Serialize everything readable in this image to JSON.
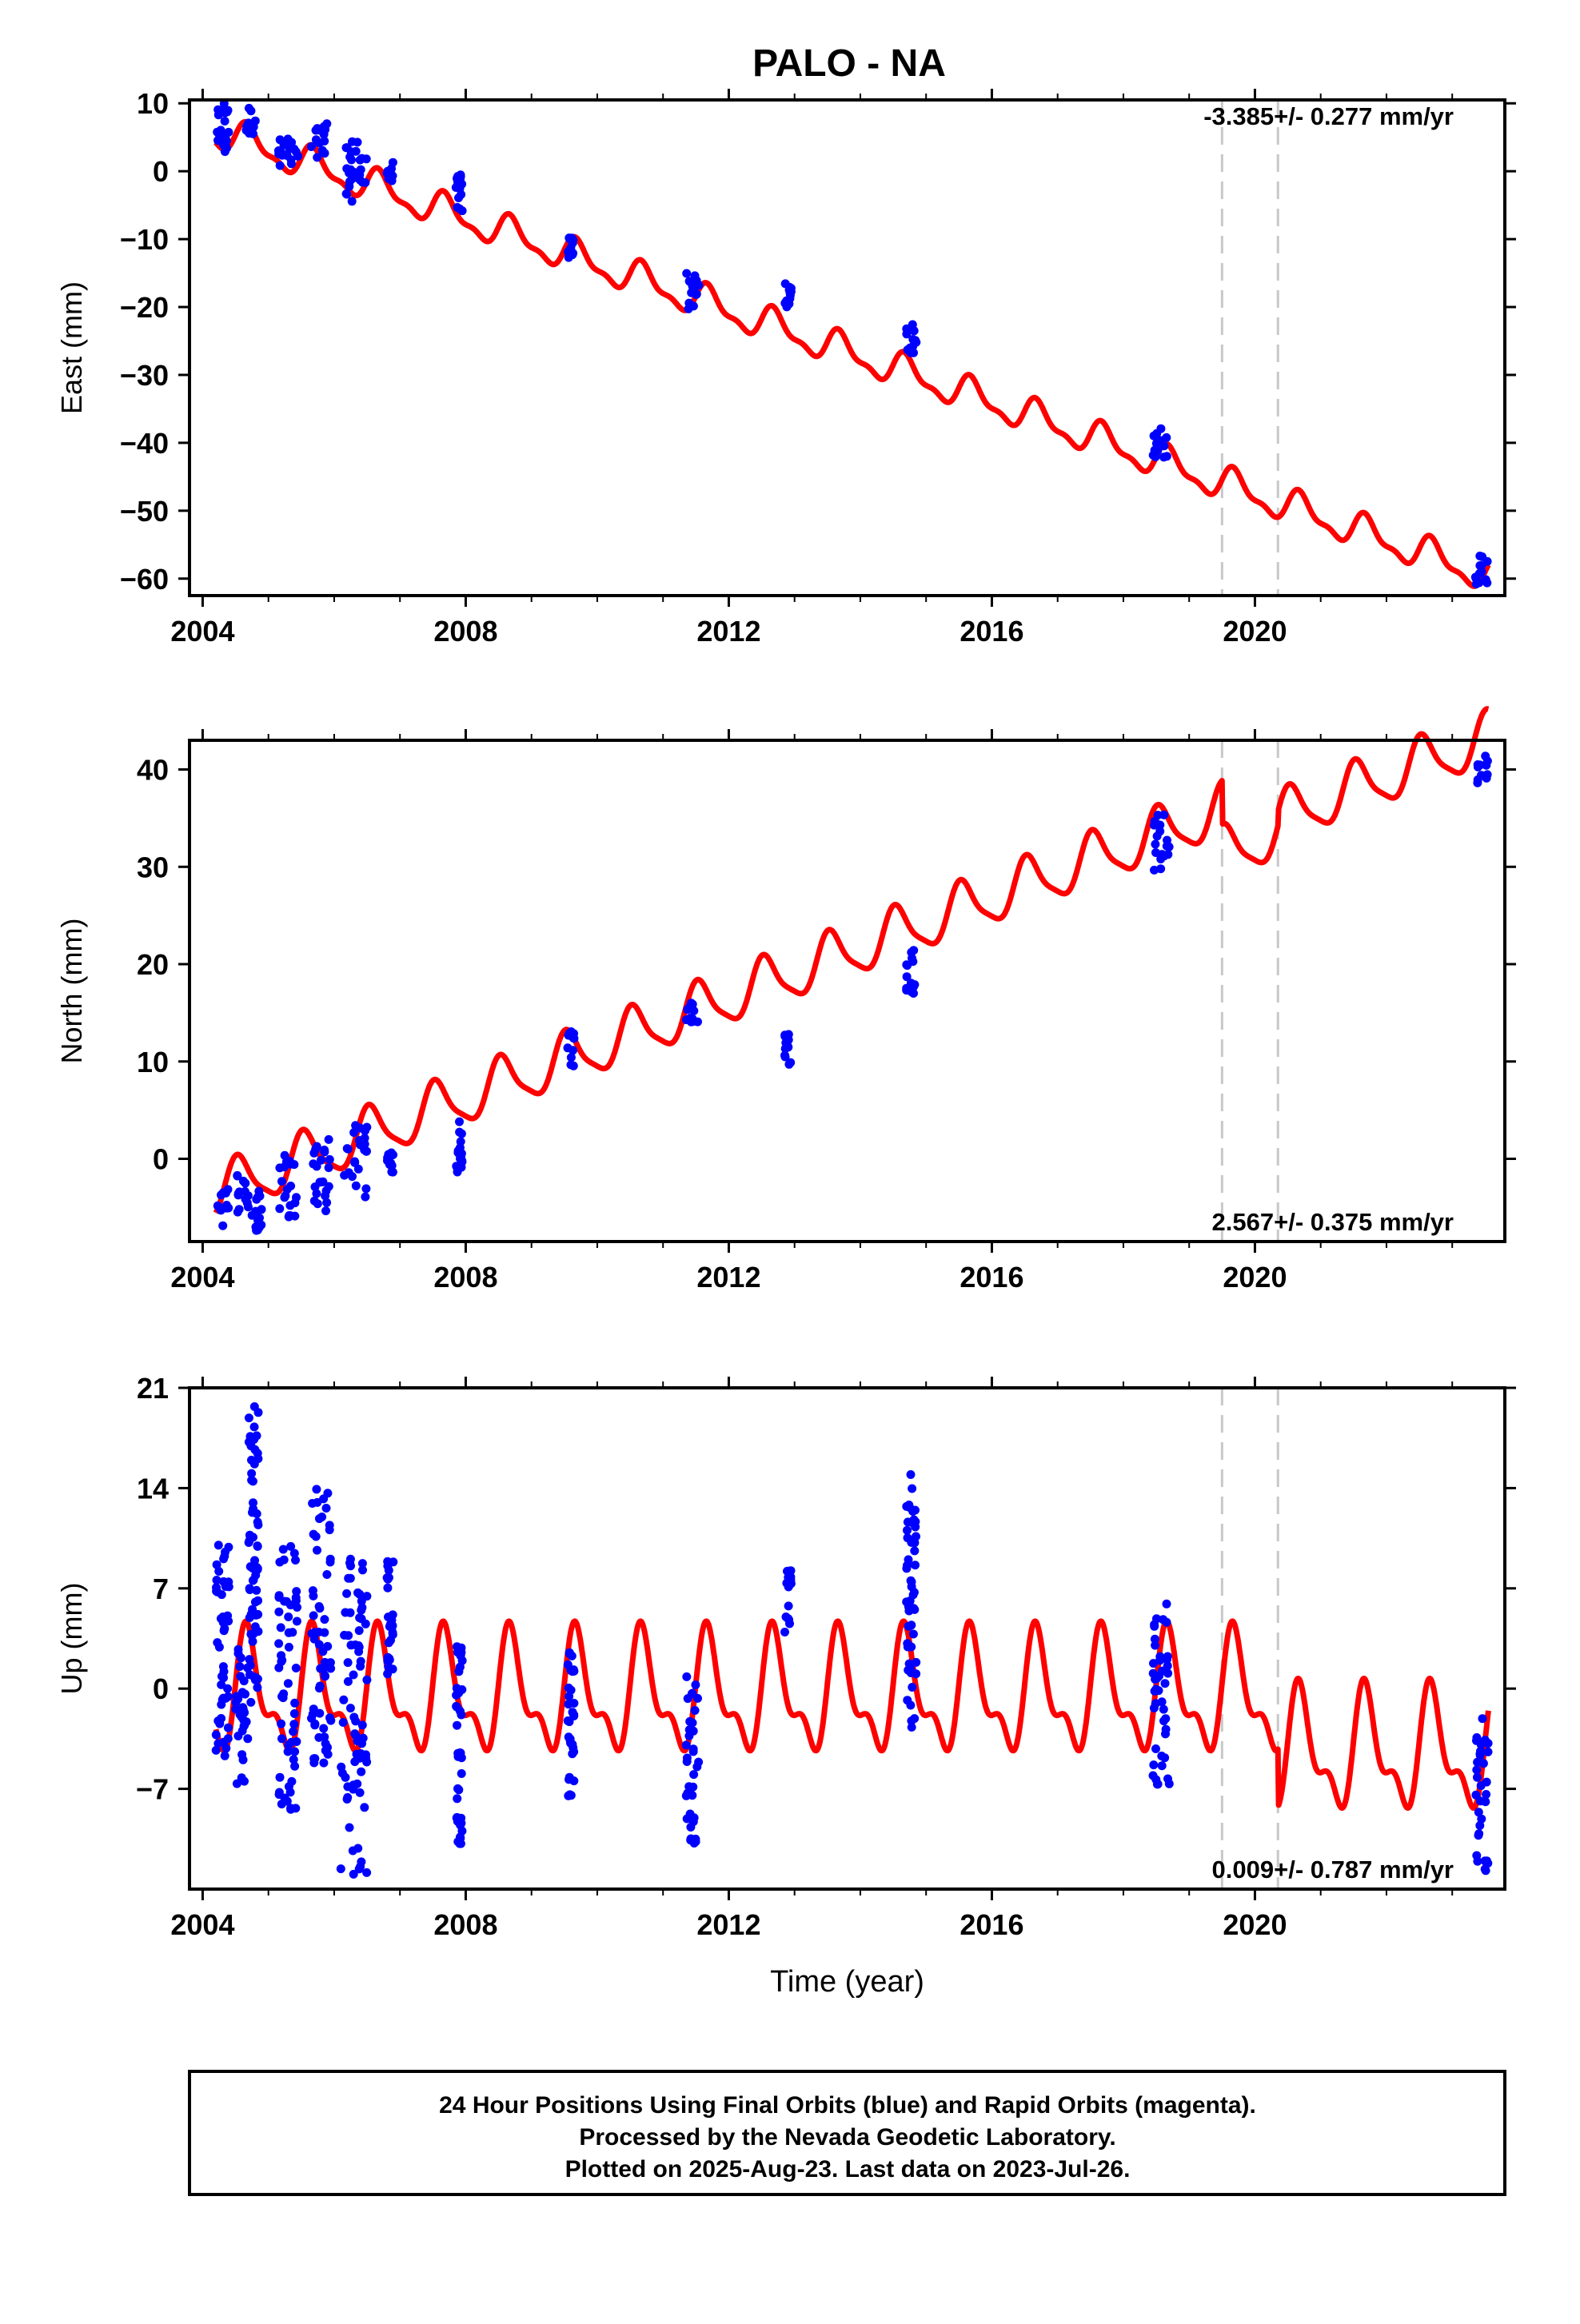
{
  "title": "PALO - NA",
  "footer": {
    "line1": "24 Hour Positions Using Final Orbits (blue) and Rapid Orbits (magenta).",
    "line2": "Processed by the Nevada Geodetic Laboratory.",
    "line3": "Plotted on 2025-Aug-23. Last data on 2023-Jul-26."
  },
  "colors": {
    "data": "#0000ff",
    "model": "#ff0000",
    "event_line": "#c8c8c8",
    "frame": "#000000"
  },
  "chart_data": [
    {
      "type": "scatter",
      "name": "east",
      "ylabel": "East (mm)",
      "xlabel": "",
      "xlim": [
        2003.8,
        2023.8
      ],
      "ylim": [
        -62.5,
        10.5
      ],
      "xticks": [
        2004,
        2008,
        2012,
        2016,
        2020
      ],
      "yticks": [
        10,
        0,
        -10,
        -20,
        -30,
        -40,
        -50,
        -60
      ],
      "rate_label": "-3.385+/- 0.277 mm/yr",
      "rate_position": "top-right",
      "event_lines": [
        2019.5,
        2020.35
      ],
      "model": {
        "type": "line",
        "intercept_at_2004": 6.5,
        "rate": -3.385,
        "annual_amp": 2.2,
        "semiannual_amp": 0.9,
        "annual_phase_year": 2004.7,
        "offsets": []
      },
      "observations": [
        {
          "t_range": [
            2004.2,
            2004.4
          ],
          "y_range": [
            2,
            10
          ]
        },
        {
          "t_range": [
            2004.6,
            2004.85
          ],
          "y_range": [
            5.5,
            9.5
          ]
        },
        {
          "t_range": [
            2005.15,
            2005.45
          ],
          "y_range": [
            -0.5,
            5
          ]
        },
        {
          "t_range": [
            2005.65,
            2005.95
          ],
          "y_range": [
            2,
            7
          ]
        },
        {
          "t_range": [
            2006.15,
            2006.5
          ],
          "y_range": [
            -4.5,
            4.5
          ]
        },
        {
          "t_range": [
            2006.8,
            2006.9
          ],
          "y_range": [
            -1.5,
            1.5
          ]
        },
        {
          "t_range": [
            2007.85,
            2007.95
          ],
          "y_range": [
            -6,
            -0.5
          ]
        },
        {
          "t_range": [
            2009.55,
            2009.65
          ],
          "y_range": [
            -13,
            -9.5
          ]
        },
        {
          "t_range": [
            2011.35,
            2011.55
          ],
          "y_range": [
            -20.5,
            -15
          ]
        },
        {
          "t_range": [
            2012.85,
            2012.95
          ],
          "y_range": [
            -20,
            -16.5
          ]
        },
        {
          "t_range": [
            2014.7,
            2014.85
          ],
          "y_range": [
            -27,
            -22.5
          ]
        },
        {
          "t_range": [
            2018.45,
            2018.7
          ],
          "y_range": [
            -42.5,
            -37.5
          ]
        },
        {
          "t_range": [
            2023.35,
            2023.55
          ],
          "y_range": [
            -61,
            -56.5
          ]
        }
      ]
    },
    {
      "type": "scatter",
      "name": "north",
      "ylabel": "North (mm)",
      "xlabel": "",
      "xlim": [
        2003.8,
        2023.8
      ],
      "ylim": [
        -8.5,
        43
      ],
      "xticks": [
        2004,
        2008,
        2012,
        2016,
        2020
      ],
      "yticks": [
        40,
        30,
        20,
        10,
        0
      ],
      "rate_label": "2.567+/- 0.375 mm/yr",
      "rate_position": "bottom-right",
      "event_lines": [
        2019.5,
        2020.35
      ],
      "model": {
        "type": "line",
        "intercept_at_2004": -4.0,
        "rate": 2.567,
        "annual_amp": 2.6,
        "semiannual_amp": 0.6,
        "annual_phase_year": 2004.55,
        "offsets": [
          [
            2019.5,
            -4.5
          ],
          [
            2020.35,
            1.5
          ]
        ]
      },
      "observations": [
        {
          "t_range": [
            2004.2,
            2004.4
          ],
          "y_range": [
            -7,
            -3
          ]
        },
        {
          "t_range": [
            2004.5,
            2004.7
          ],
          "y_range": [
            -5.5,
            -1
          ]
        },
        {
          "t_range": [
            2004.75,
            2004.9
          ],
          "y_range": [
            -7.5,
            -3
          ]
        },
        {
          "t_range": [
            2005.15,
            2005.45
          ],
          "y_range": [
            -6,
            0.5
          ]
        },
        {
          "t_range": [
            2005.65,
            2005.95
          ],
          "y_range": [
            -5.5,
            2
          ]
        },
        {
          "t_range": [
            2006.15,
            2006.5
          ],
          "y_range": [
            -4,
            3.5
          ]
        },
        {
          "t_range": [
            2006.8,
            2006.9
          ],
          "y_range": [
            -1.5,
            1
          ]
        },
        {
          "t_range": [
            2007.85,
            2007.95
          ],
          "y_range": [
            -1.5,
            4
          ]
        },
        {
          "t_range": [
            2009.55,
            2009.65
          ],
          "y_range": [
            9.5,
            13.5
          ]
        },
        {
          "t_range": [
            2011.35,
            2011.55
          ],
          "y_range": [
            13.5,
            17
          ]
        },
        {
          "t_range": [
            2012.85,
            2012.95
          ],
          "y_range": [
            9.5,
            13
          ]
        },
        {
          "t_range": [
            2014.7,
            2014.85
          ],
          "y_range": [
            17,
            22
          ]
        },
        {
          "t_range": [
            2018.45,
            2018.7
          ],
          "y_range": [
            29.5,
            36
          ]
        },
        {
          "t_range": [
            2023.35,
            2023.55
          ],
          "y_range": [
            38.5,
            41.5
          ]
        }
      ]
    },
    {
      "type": "scatter",
      "name": "up",
      "ylabel": "Up (mm)",
      "xlabel": "Time (year)",
      "xlim": [
        2003.8,
        2023.8
      ],
      "ylim": [
        -14,
        21
      ],
      "xticks": [
        2004,
        2008,
        2012,
        2016,
        2020
      ],
      "yticks": [
        21,
        14,
        7,
        0,
        -7
      ],
      "rate_label": "0.009+/- 0.787 mm/yr",
      "rate_position": "bottom-right",
      "event_lines": [
        2019.5,
        2020.35
      ],
      "model": {
        "type": "line",
        "intercept_at_2004": -0.5,
        "rate": 0.0,
        "annual_amp": 3.6,
        "semiannual_amp": 1.8,
        "annual_phase_year": 2004.7,
        "offsets": [
          [
            2020.35,
            -4.0
          ]
        ]
      },
      "observations": [
        {
          "t_range": [
            2004.2,
            2004.4
          ],
          "y_range": [
            -5,
            10.5
          ]
        },
        {
          "t_range": [
            2004.5,
            2004.7
          ],
          "y_range": [
            -7,
            3
          ]
        },
        {
          "t_range": [
            2004.7,
            2004.85
          ],
          "y_range": [
            -1,
            20.5
          ]
        },
        {
          "t_range": [
            2005.15,
            2005.45
          ],
          "y_range": [
            -8.5,
            10.5
          ]
        },
        {
          "t_range": [
            2005.65,
            2005.95
          ],
          "y_range": [
            -5.5,
            14
          ]
        },
        {
          "t_range": [
            2006.1,
            2006.5
          ],
          "y_range": [
            -13,
            11
          ]
        },
        {
          "t_range": [
            2006.8,
            2006.9
          ],
          "y_range": [
            1,
            10
          ]
        },
        {
          "t_range": [
            2007.85,
            2007.95
          ],
          "y_range": [
            -11,
            3
          ]
        },
        {
          "t_range": [
            2009.55,
            2009.65
          ],
          "y_range": [
            -7.5,
            3
          ]
        },
        {
          "t_range": [
            2011.35,
            2011.55
          ],
          "y_range": [
            -11,
            1
          ]
        },
        {
          "t_range": [
            2012.85,
            2012.95
          ],
          "y_range": [
            3.5,
            8.5
          ]
        },
        {
          "t_range": [
            2014.7,
            2014.85
          ],
          "y_range": [
            -3,
            15
          ]
        },
        {
          "t_range": [
            2018.45,
            2018.7
          ],
          "y_range": [
            -8,
            6.5
          ]
        },
        {
          "t_range": [
            2023.35,
            2023.55
          ],
          "y_range": [
            -13,
            -2
          ]
        }
      ]
    }
  ]
}
